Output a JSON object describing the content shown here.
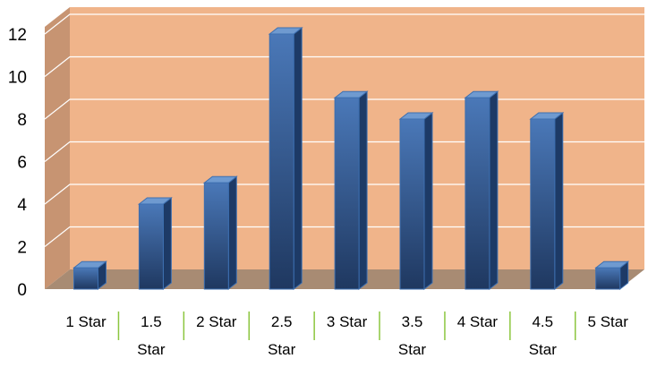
{
  "chart_data": {
    "type": "bar",
    "title": "",
    "xlabel": "",
    "ylabel": "",
    "categories": [
      "1 Star",
      "1.5 Star",
      "2 Star",
      "2.5 Star",
      "3 Star",
      "3.5 Star",
      "4 Star",
      "4.5 Star",
      "5 Star"
    ],
    "category_lines": [
      [
        "1 Star"
      ],
      [
        "1.5",
        "Star"
      ],
      [
        "2 Star"
      ],
      [
        "2.5",
        "Star"
      ],
      [
        "3 Star"
      ],
      [
        "3.5",
        "Star"
      ],
      [
        "4 Star"
      ],
      [
        "4.5",
        "Star"
      ],
      [
        "5 Star"
      ]
    ],
    "values": [
      1,
      4,
      5,
      12,
      9,
      8,
      9,
      8,
      1
    ],
    "ylim": [
      0,
      12
    ],
    "yticks": [
      0,
      2,
      4,
      6,
      8,
      10,
      12
    ],
    "grid": true,
    "legend": "none",
    "colors": {
      "wall": "#f0b48a",
      "side_wall": "#c79472",
      "floor": "#a88b73",
      "bar_front_top": "#4a78b8",
      "bar_front_bottom": "#1f3860",
      "bar_side": "#1d3a66",
      "bar_top": "#6f9ad0",
      "bar_edge": "#3d6fb0",
      "category_separator": "#8cc63f",
      "gridline": "#ffffff"
    }
  }
}
